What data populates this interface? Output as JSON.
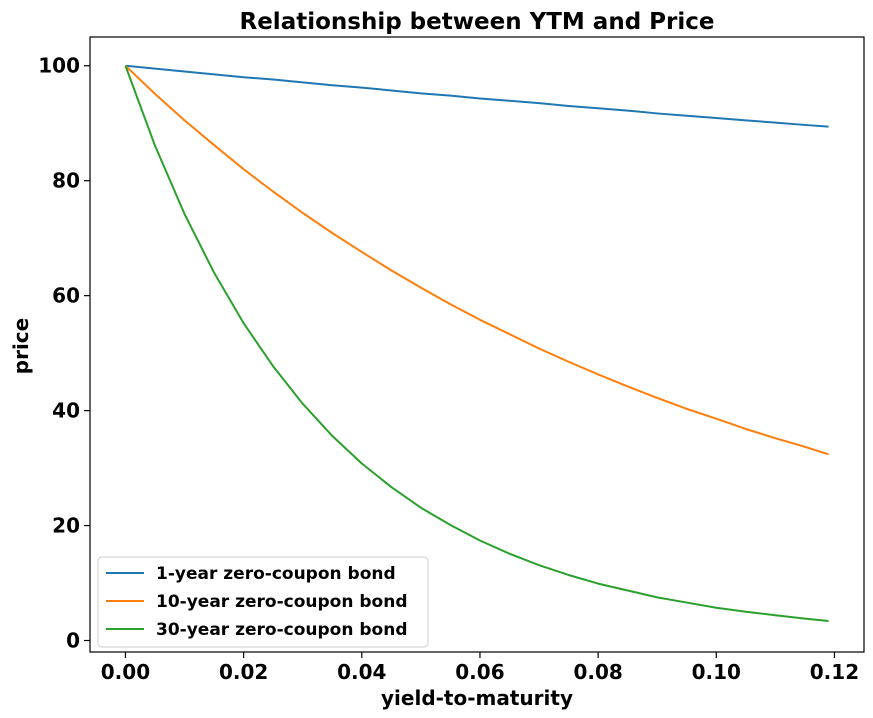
{
  "chart_data": {
    "type": "line",
    "title": "Relationship between YTM and Price",
    "xlabel": "yield-to-maturity",
    "ylabel": "price",
    "xlim": [
      -0.006,
      0.125
    ],
    "ylim": [
      -2,
      105
    ],
    "x_ticks": [
      {
        "value": 0.0,
        "label": "0.00"
      },
      {
        "value": 0.02,
        "label": "0.02"
      },
      {
        "value": 0.04,
        "label": "0.04"
      },
      {
        "value": 0.06,
        "label": "0.06"
      },
      {
        "value": 0.08,
        "label": "0.08"
      },
      {
        "value": 0.1,
        "label": "0.10"
      },
      {
        "value": 0.12,
        "label": "0.12"
      }
    ],
    "y_ticks": [
      {
        "value": 0,
        "label": "0"
      },
      {
        "value": 20,
        "label": "20"
      },
      {
        "value": 40,
        "label": "40"
      },
      {
        "value": 60,
        "label": "60"
      },
      {
        "value": 80,
        "label": "80"
      },
      {
        "value": 100,
        "label": "100"
      }
    ],
    "grid": false,
    "legend_position": "lower-left",
    "x": [
      0.0,
      0.005,
      0.01,
      0.015,
      0.02,
      0.025,
      0.03,
      0.035,
      0.04,
      0.045,
      0.05,
      0.055,
      0.06,
      0.065,
      0.07,
      0.075,
      0.08,
      0.085,
      0.09,
      0.095,
      0.1,
      0.105,
      0.11,
      0.115,
      0.119
    ],
    "series": [
      {
        "name": "1-year zero-coupon bond",
        "color": "#1f77b4",
        "values": [
          100.0,
          99.5,
          99.0,
          98.5,
          98.0,
          97.6,
          97.1,
          96.6,
          96.2,
          95.7,
          95.2,
          94.8,
          94.3,
          93.9,
          93.5,
          93.0,
          92.6,
          92.2,
          91.7,
          91.3,
          90.9,
          90.5,
          90.1,
          89.7,
          89.4
        ]
      },
      {
        "name": "10-year zero-coupon bond",
        "color": "#ff7f0e",
        "values": [
          100.0,
          95.1,
          90.5,
          86.2,
          82.0,
          78.1,
          74.4,
          70.9,
          67.6,
          64.4,
          61.4,
          58.5,
          55.8,
          53.3,
          50.8,
          48.5,
          46.3,
          44.2,
          42.2,
          40.3,
          38.6,
          36.8,
          35.2,
          33.7,
          32.4
        ]
      },
      {
        "name": "30-year zero-coupon bond",
        "color": "#2ca02c",
        "values": [
          100.0,
          86.1,
          74.2,
          64.0,
          55.2,
          47.7,
          41.2,
          35.6,
          30.8,
          26.7,
          23.1,
          20.1,
          17.4,
          15.1,
          13.1,
          11.4,
          9.9,
          8.7,
          7.5,
          6.6,
          5.7,
          5.0,
          4.4,
          3.8,
          3.4
        ]
      }
    ]
  }
}
